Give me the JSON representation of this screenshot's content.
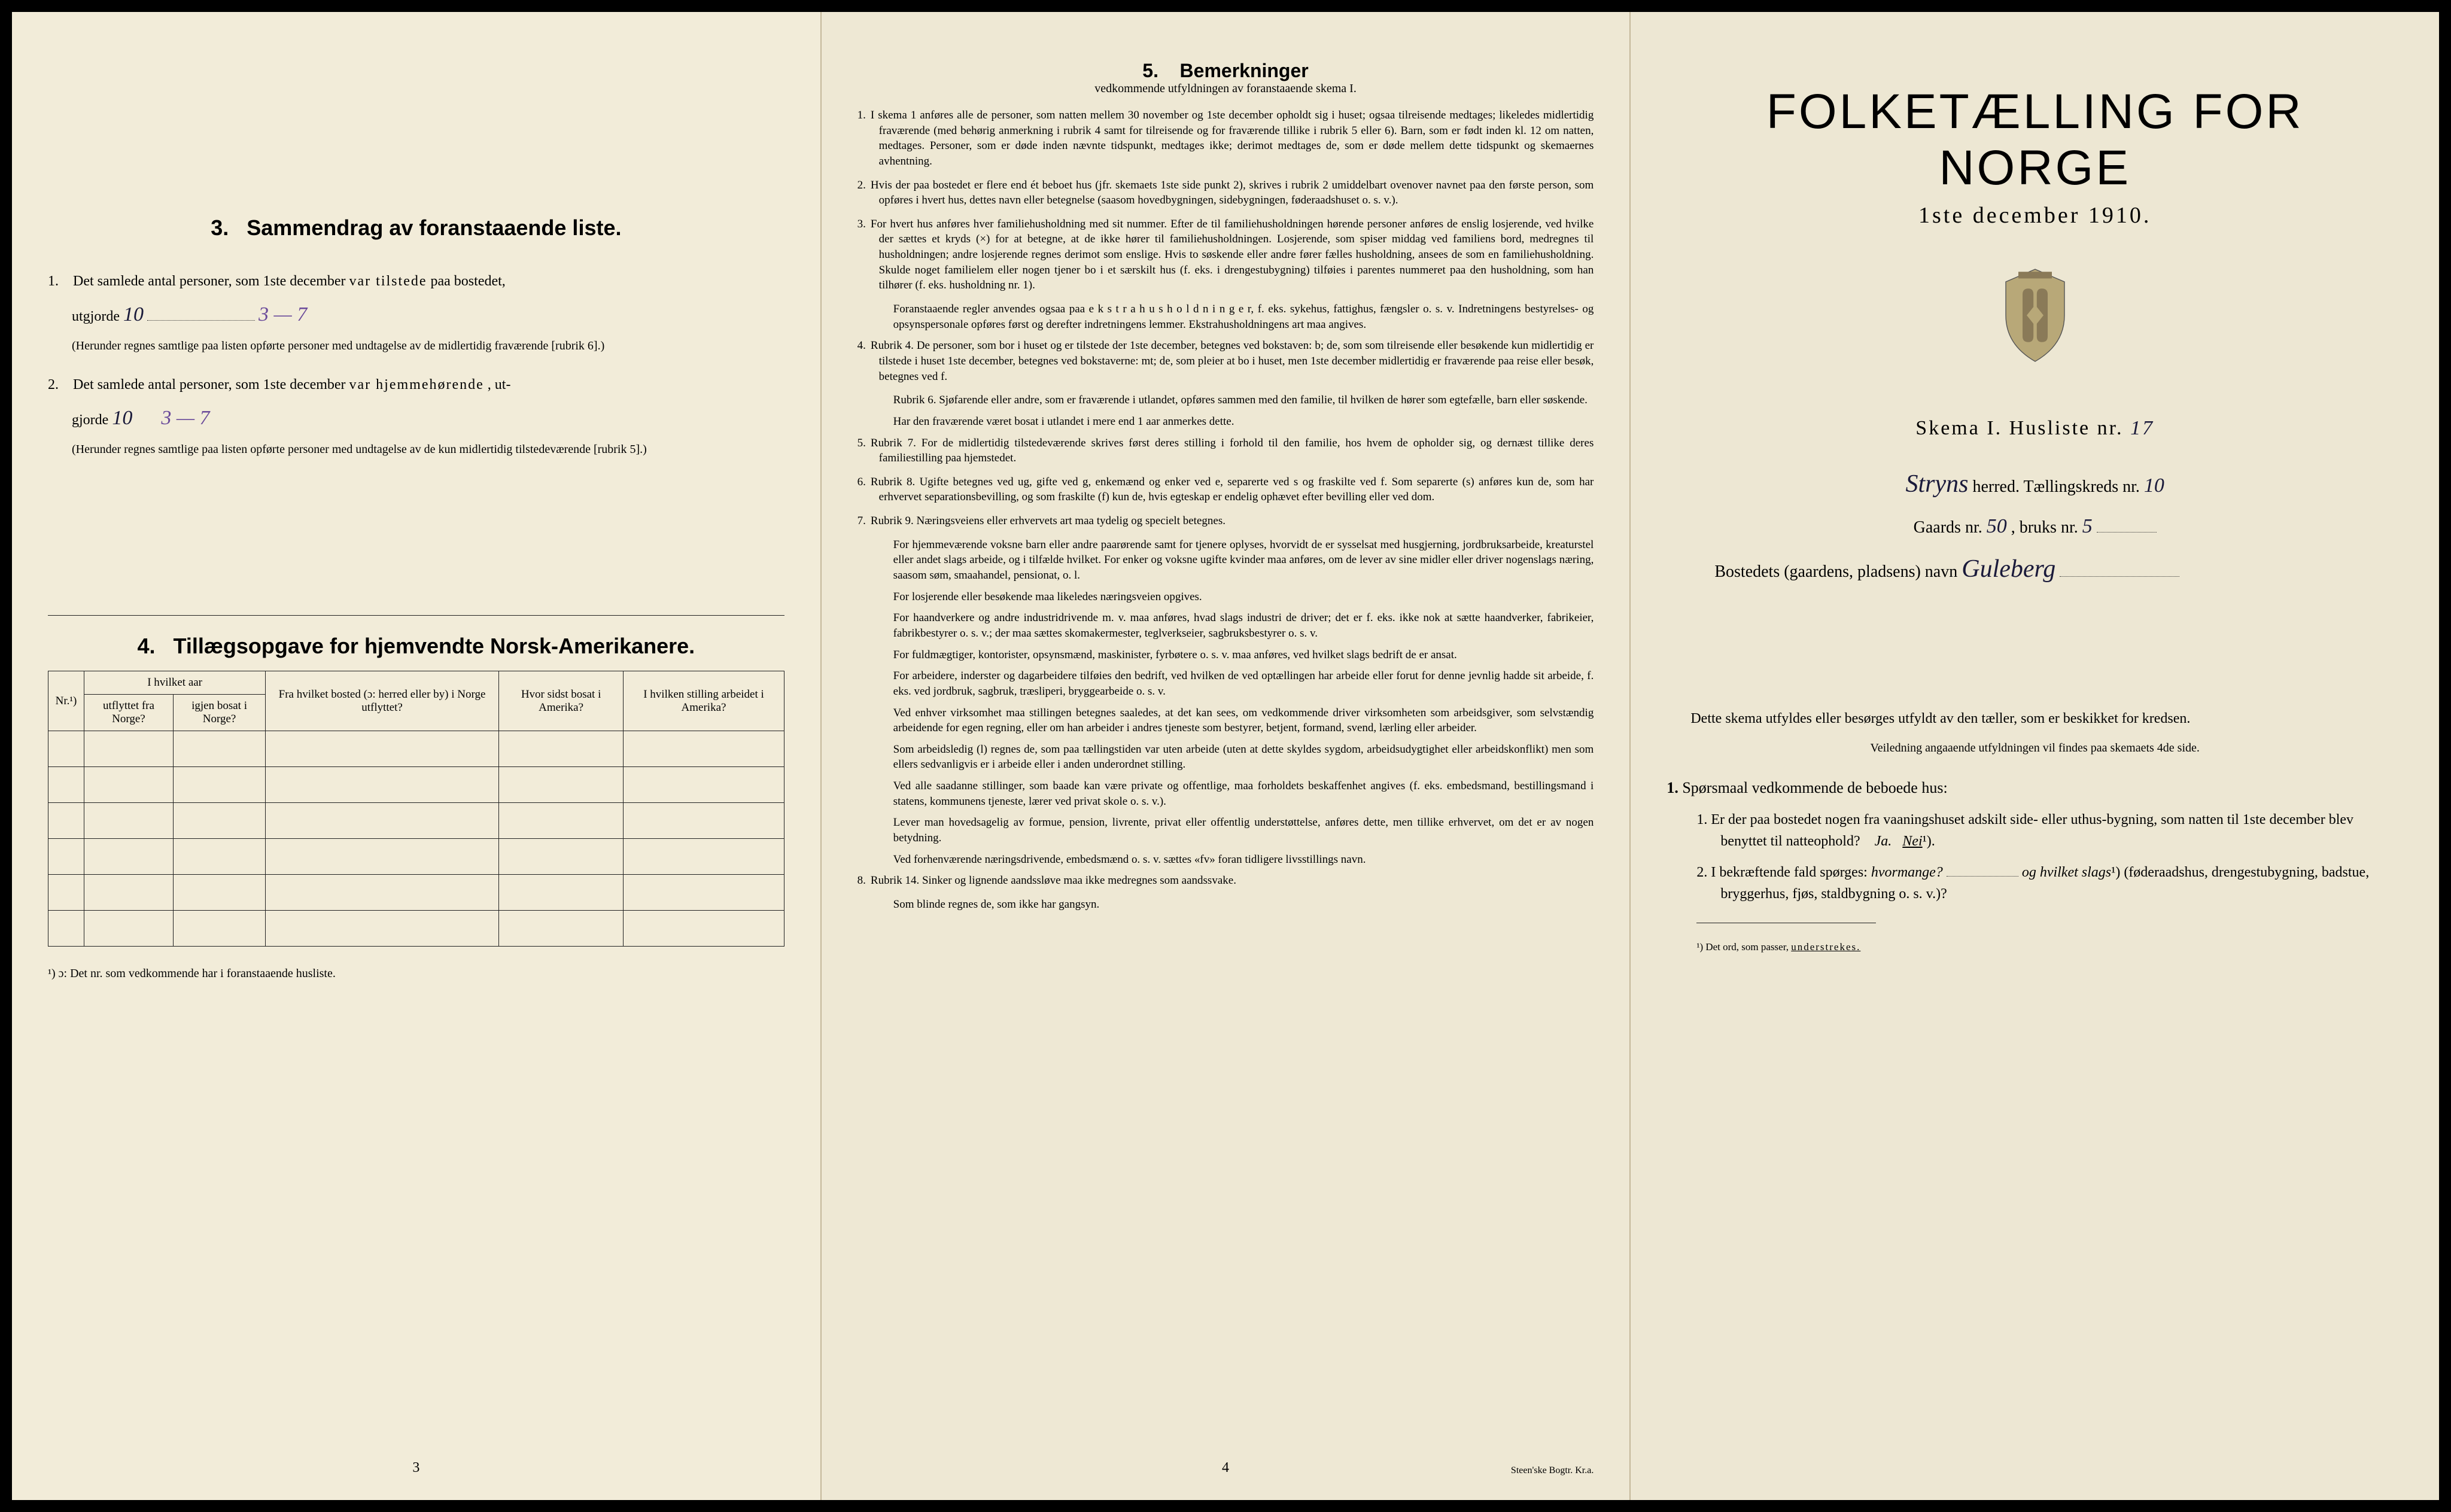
{
  "page1": {
    "section3": {
      "title_num": "3.",
      "title": "Sammendrag av foranstaaende liste.",
      "item1_pre": "Det samlede antal personer, som 1ste december",
      "item1_bold": "var tilstede",
      "item1_post": "paa bostedet,",
      "item1_line2_pre": "utgjorde",
      "item1_value": "10",
      "item1_purple": "3 — 7",
      "item1_note": "(Herunder regnes samtlige paa listen opførte personer med undtagelse av de midlertidig fraværende [rubrik 6].)",
      "item2_pre": "Det samlede antal personer, som 1ste december",
      "item2_bold": "var hjemmehørende",
      "item2_post": ", ut-",
      "item2_line2_pre": "gjorde",
      "item2_value": "10",
      "item2_purple": "3 — 7",
      "item2_note": "(Herunder regnes samtlige paa listen opførte personer med undtagelse av de kun midlertidig tilstedeværende [rubrik 5].)"
    },
    "section4": {
      "title_num": "4.",
      "title": "Tillægsopgave for hjemvendte Norsk-Amerikanere.",
      "columns": [
        "Nr.¹)",
        "I hvilket aar utflyttet fra Norge?",
        "igjen bosat i Norge?",
        "Fra hvilket bosted (ɔ: herred eller by) i Norge utflyttet?",
        "Hvor sidst bosat i Amerika?",
        "I hvilken stilling arbeidet i Amerika?"
      ],
      "footnote": "¹) ɔ: Det nr. som vedkommende har i foranstaaende husliste.",
      "empty_rows": 6
    },
    "page_number": "3"
  },
  "page2": {
    "title_num": "5.",
    "title": "Bemerkninger",
    "subtitle": "vedkommende utfyldningen av foranstaaende skema I.",
    "items": [
      {
        "n": "1.",
        "text": "I skema 1 anføres alle de personer, som natten mellem 30 november og 1ste december opholdt sig i huset; ogsaa tilreisende medtages; likeledes midlertidig fraværende (med behørig anmerkning i rubrik 4 samt for tilreisende og for fraværende tillike i rubrik 5 eller 6). Barn, som er født inden kl. 12 om natten, medtages. Personer, som er døde inden nævnte tidspunkt, medtages ikke; derimot medtages de, som er døde mellem dette tidspunkt og skemaernes avhentning."
      },
      {
        "n": "2.",
        "text": "Hvis der paa bostedet er flere end ét beboet hus (jfr. skemaets 1ste side punkt 2), skrives i rubrik 2 umiddelbart ovenover navnet paa den første person, som opføres i hvert hus, dettes navn eller betegnelse (saasom hovedbygningen, sidebygningen, føderaadshuset o. s. v.)."
      },
      {
        "n": "3.",
        "text": "For hvert hus anføres hver familiehusholdning med sit nummer. Efter de til familiehusholdningen hørende personer anføres de enslig losjerende, ved hvilke der sættes et kryds (×) for at betegne, at de ikke hører til familiehusholdningen. Losjerende, som spiser middag ved familiens bord, medregnes til husholdningen; andre losjerende regnes derimot som enslige. Hvis to søskende eller andre fører fælles husholdning, ansees de som en familiehusholdning. Skulde noget familielem eller nogen tjener bo i et særskilt hus (f. eks. i drengestubygning) tilføies i parentes nummeret paa den husholdning, som han tilhører (f. eks. husholdning nr. 1).",
        "cont": "Foranstaaende regler anvendes ogsaa paa e k s t r a h u s h o l d n i n g e r, f. eks. sykehus, fattighus, fængsler o. s. v. Indretningens bestyrelses- og opsynspersonale opføres først og derefter indretningens lemmer. Ekstrahusholdningens art maa angives."
      },
      {
        "n": "4.",
        "text": "Rubrik 4. De personer, som bor i huset og er tilstede der 1ste december, betegnes ved bokstaven: b; de, som som tilreisende eller besøkende kun midlertidig er tilstede i huset 1ste december, betegnes ved bokstaverne: mt; de, som pleier at bo i huset, men 1ste december midlertidig er fraværende paa reise eller besøk, betegnes ved f.",
        "cont": "Rubrik 6. Sjøfarende eller andre, som er fraværende i utlandet, opføres sammen med den familie, til hvilken de hører som egtefælle, barn eller søskende.",
        "cont2": "Har den fraværende været bosat i utlandet i mere end 1 aar anmerkes dette."
      },
      {
        "n": "5.",
        "text": "Rubrik 7. For de midlertidig tilstedeværende skrives først deres stilling i forhold til den familie, hos hvem de opholder sig, og dernæst tillike deres familiestilling paa hjemstedet."
      },
      {
        "n": "6.",
        "text": "Rubrik 8. Ugifte betegnes ved ug, gifte ved g, enkemænd og enker ved e, separerte ved s og fraskilte ved f. Som separerte (s) anføres kun de, som har erhvervet separationsbevilling, og som fraskilte (f) kun de, hvis egteskap er endelig ophævet efter bevilling eller ved dom."
      },
      {
        "n": "7.",
        "text": "Rubrik 9. Næringsveiens eller erhvervets art maa tydelig og specielt betegnes.",
        "blocks": [
          "For hjemmeværende voksne barn eller andre paarørende samt for tjenere oplyses, hvorvidt de er sysselsat med husgjerning, jordbruksarbeide, kreaturstel eller andet slags arbeide, og i tilfælde hvilket. For enker og voksne ugifte kvinder maa anføres, om de lever av sine midler eller driver nogenslags næring, saasom søm, smaahandel, pensionat, o. l.",
          "For losjerende eller besøkende maa likeledes næringsveien opgives.",
          "For haandverkere og andre industridrivende m. v. maa anføres, hvad slags industri de driver; det er f. eks. ikke nok at sætte haandverker, fabrikeier, fabrikbestyrer o. s. v.; der maa sættes skomakermester, teglverkseier, sagbruksbestyrer o. s. v.",
          "For fuldmægtiger, kontorister, opsynsmænd, maskinister, fyrbøtere o. s. v. maa anføres, ved hvilket slags bedrift de er ansat.",
          "For arbeidere, inderster og dagarbeidere tilføies den bedrift, ved hvilken de ved optællingen har arbeide eller forut for denne jevnlig hadde sit arbeide, f. eks. ved jordbruk, sagbruk, træsliperi, bryggearbeide o. s. v.",
          "Ved enhver virksomhet maa stillingen betegnes saaledes, at det kan sees, om vedkommende driver virksomheten som arbeidsgiver, som selvstændig arbeidende for egen regning, eller om han arbeider i andres tjeneste som bestyrer, betjent, formand, svend, lærling eller arbeider.",
          "Som arbeidsledig (l) regnes de, som paa tællingstiden var uten arbeide (uten at dette skyldes sygdom, arbeidsudygtighet eller arbeidskonflikt) men som ellers sedvanligvis er i arbeide eller i anden underordnet stilling.",
          "Ved alle saadanne stillinger, som baade kan være private og offentlige, maa forholdets beskaffenhet angives (f. eks. embedsmand, bestillingsmand i statens, kommunens tjeneste, lærer ved privat skole o. s. v.).",
          "Lever man hovedsagelig av formue, pension, livrente, privat eller offentlig understøttelse, anføres dette, men tillike erhvervet, om det er av nogen betydning.",
          "Ved forhenværende næringsdrivende, embedsmænd o. s. v. sættes «fv» foran tidligere livsstillings navn."
        ]
      },
      {
        "n": "8.",
        "text": "Rubrik 14. Sinker og lignende aandssløve maa ikke medregnes som aandssvake.",
        "cont": "Som blinde regnes de, som ikke har gangsyn."
      }
    ],
    "page_number": "4",
    "printer": "Steen'ske Bogtr. Kr.a."
  },
  "page3": {
    "main_title": "FOLKETÆLLING FOR NORGE",
    "date": "1ste december 1910.",
    "skema_label": "Skema I.  Husliste nr.",
    "husliste_nr": "17",
    "herred_value": "Stryns",
    "herred_label": "herred.  Tællingskreds nr.",
    "kreds_nr": "10",
    "gaards_label_pre": "Gaards nr.",
    "gaards_nr": "50",
    "bruks_label": ", bruks nr.",
    "bruks_nr": "5",
    "bosted_label": "Bostedets (gaardens, pladsens) navn",
    "bosted_value": "Guleberg",
    "instruction": "Dette skema utfyldes eller besørges utfyldt av den tæller, som er beskikket for kredsen.",
    "veiledning": "Veiledning angaaende utfyldningen vil findes paa skemaets 4de side.",
    "q_heading_num": "1.",
    "q_heading": "Spørsmaal vedkommende de beboede hus:",
    "q1_num": "1.",
    "q1_text": "Er der paa bostedet nogen fra vaaningshuset adskilt side- eller uthus-bygning, som natten til 1ste december blev benyttet til natteophold?",
    "q1_ja": "Ja.",
    "q1_nei": "Nei",
    "q1_sup": "¹).",
    "q2_num": "2.",
    "q2_text_pre": "I bekræftende fald spørges:",
    "q2_hvor": "hvormange?",
    "q2_og": "og hvilket slags",
    "q2_sup": "¹)",
    "q2_post": "(føderaadshus, drengestubygning, badstue, bryggerhus, fjøs, staldbygning o. s. v.)?",
    "footnote": "¹) Det ord, som passer, understrekes."
  }
}
